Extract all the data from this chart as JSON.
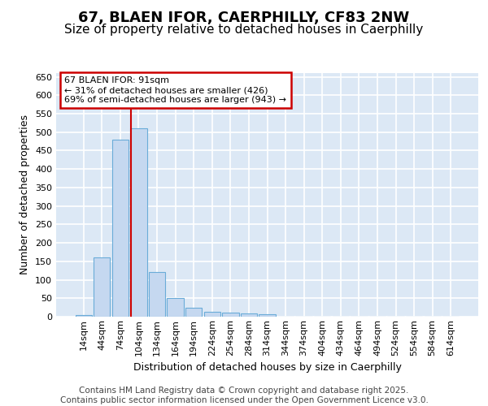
{
  "title_line1": "67, BLAEN IFOR, CAERPHILLY, CF83 2NW",
  "title_line2": "Size of property relative to detached houses in Caerphilly",
  "xlabel": "Distribution of detached houses by size in Caerphilly",
  "ylabel": "Number of detached properties",
  "bin_labels": [
    "14sqm",
    "44sqm",
    "74sqm",
    "104sqm",
    "134sqm",
    "164sqm",
    "194sqm",
    "224sqm",
    "254sqm",
    "284sqm",
    "314sqm",
    "344sqm",
    "374sqm",
    "404sqm",
    "434sqm",
    "464sqm",
    "494sqm",
    "524sqm",
    "554sqm",
    "584sqm",
    "614sqm"
  ],
  "values": [
    5,
    160,
    480,
    510,
    122,
    50,
    25,
    13,
    10,
    8,
    7,
    0,
    0,
    0,
    0,
    0,
    0,
    0,
    0,
    0,
    0
  ],
  "bar_color": "#c5d8f0",
  "bar_edge_color": "#6aacd8",
  "annotation_text_line1": "67 BLAEN IFOR: 91sqm",
  "annotation_text_line2": "← 31% of detached houses are smaller (426)",
  "annotation_text_line3": "69% of semi-detached houses are larger (943) →",
  "annotation_box_color": "#ffffff",
  "annotation_box_edge": "#cc0000",
  "vline_color": "#cc0000",
  "vline_position": 2.567,
  "ylim": [
    0,
    660
  ],
  "yticks": [
    0,
    50,
    100,
    150,
    200,
    250,
    300,
    350,
    400,
    450,
    500,
    550,
    600,
    650
  ],
  "footer_line1": "Contains HM Land Registry data © Crown copyright and database right 2025.",
  "footer_line2": "Contains public sector information licensed under the Open Government Licence v3.0.",
  "fig_bg_color": "#ffffff",
  "plot_bg_color": "#dce8f5",
  "grid_color": "#ffffff",
  "title_fontsize": 13,
  "subtitle_fontsize": 11,
  "axis_label_fontsize": 9,
  "tick_fontsize": 8,
  "annotation_fontsize": 8,
  "footer_fontsize": 7.5
}
